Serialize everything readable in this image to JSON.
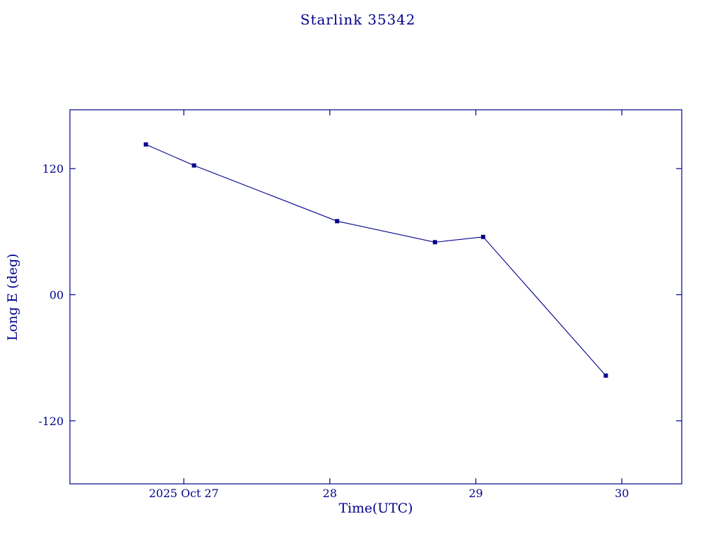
{
  "page": {
    "background": "#ffffff",
    "accent_color": "#00008b"
  },
  "chart_data": {
    "type": "line",
    "title": "Starlink 35342",
    "xlabel": "Time(UTC)",
    "ylabel": "Long E (deg)",
    "line_color": "#00008b",
    "marker": "square",
    "grid": false,
    "legend": "none",
    "xlim": [
      26.22,
      30.41
    ],
    "ylim": [
      -180,
      176
    ],
    "x_ticks": [
      {
        "value": 27,
        "label": "2025 Oct 27"
      },
      {
        "value": 28,
        "label": "28"
      },
      {
        "value": 29,
        "label": "29"
      },
      {
        "value": 30,
        "label": "30"
      }
    ],
    "y_ticks": [
      {
        "value": 120,
        "label": "120"
      },
      {
        "value": 0,
        "label": "00"
      },
      {
        "value": -120,
        "label": "-120"
      }
    ],
    "series": [
      {
        "name": "Long E",
        "x": [
          26.74,
          27.07,
          28.05,
          28.72,
          29.05,
          29.89
        ],
        "y": [
          143,
          123,
          70,
          50,
          55,
          -77
        ]
      }
    ]
  }
}
